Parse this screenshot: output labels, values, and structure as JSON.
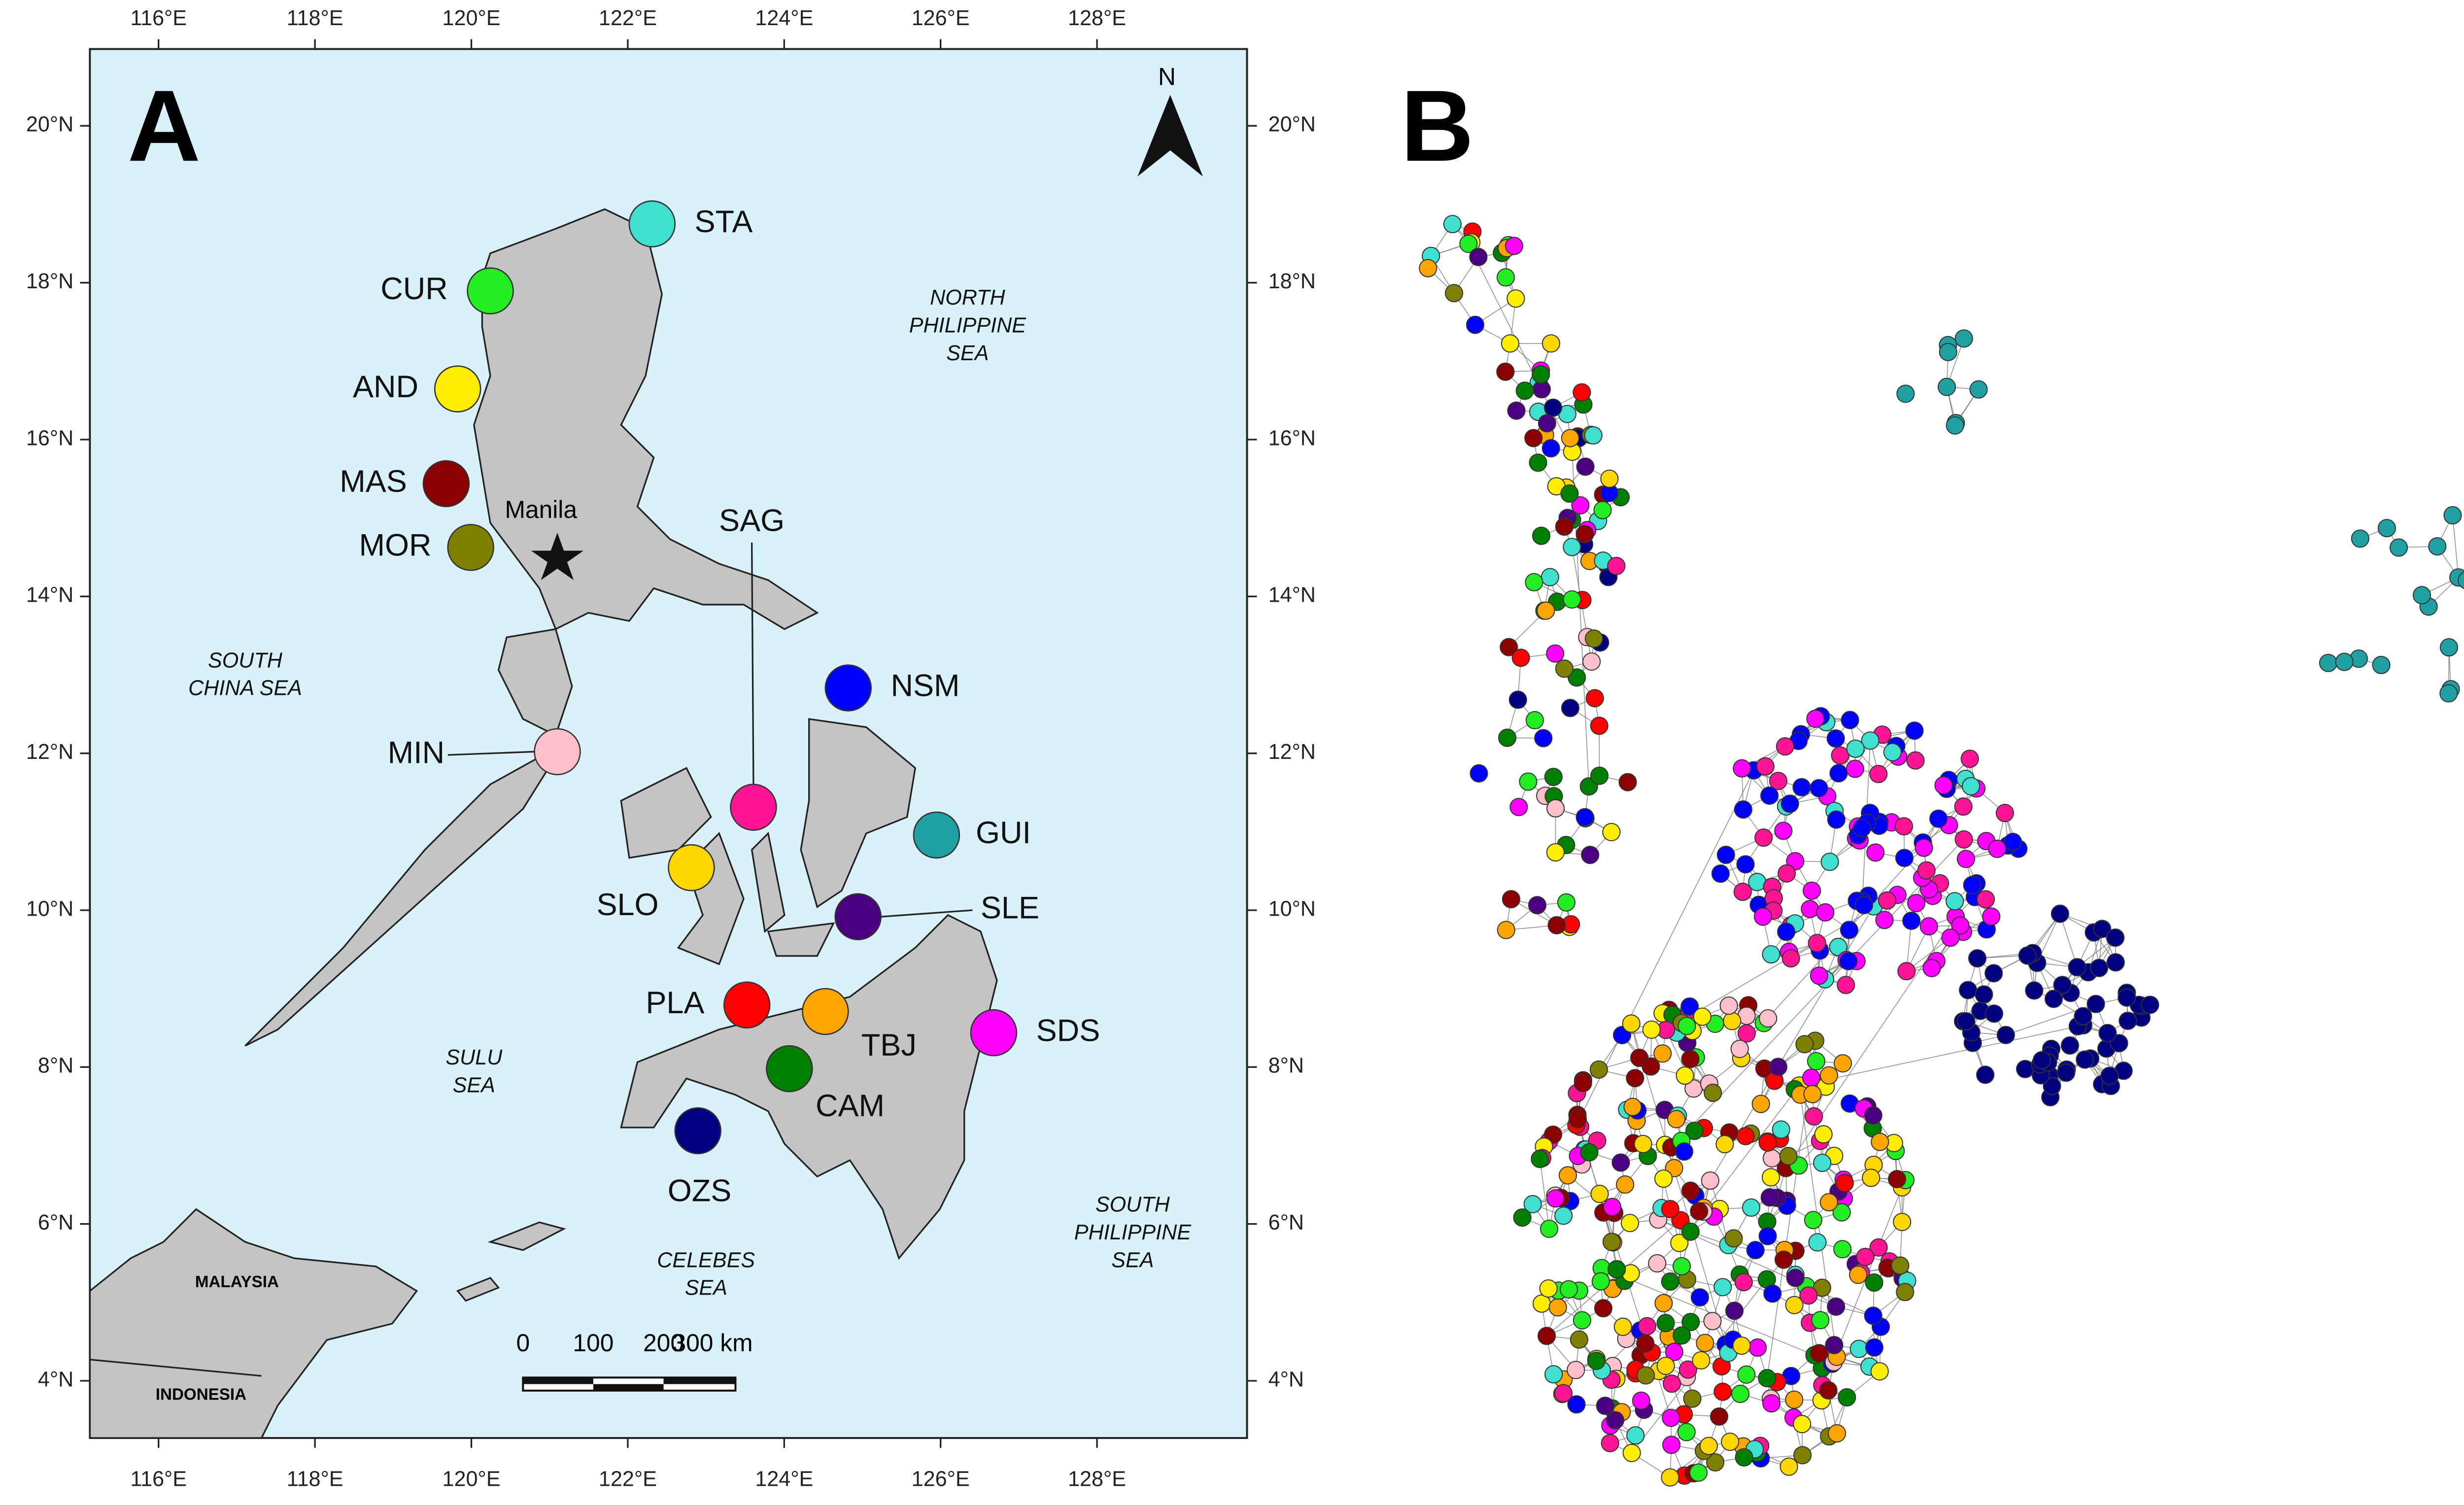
{
  "panel_labels": [
    "A",
    "B"
  ],
  "map": {
    "lon_ticks": [
      "116°E",
      "118°E",
      "120°E",
      "122°E",
      "124°E",
      "126°E",
      "128°E"
    ],
    "lat_ticks": [
      "20°N",
      "18°N",
      "16°N",
      "14°N",
      "12°N",
      "10°N",
      "8°N",
      "6°N",
      "4°N"
    ],
    "north": "N",
    "city": "Manila",
    "seas": [
      [
        "SOUTH",
        "CHINA SEA"
      ],
      [
        "NORTH",
        "PHILIPPINE",
        "SEA"
      ],
      [
        "SULU",
        "SEA"
      ],
      [
        "CELEBES",
        "SEA"
      ],
      [
        "SOUTH",
        "PHILIPPINE",
        "SEA"
      ]
    ],
    "countries": [
      "MALAYSIA",
      "INDONESIA"
    ],
    "scale_bar": [
      "0",
      "100",
      "200",
      "300 km"
    ],
    "sites": [
      {
        "name": "STA",
        "color": "#40e0d0"
      },
      {
        "name": "CUR",
        "color": "#22ee22"
      },
      {
        "name": "AND",
        "color": "#ffee00"
      },
      {
        "name": "MAS",
        "color": "#8b0000"
      },
      {
        "name": "MOR",
        "color": "#808000"
      },
      {
        "name": "MIN",
        "color": "#ffc0cb"
      },
      {
        "name": "SAG",
        "color": "#ff1493"
      },
      {
        "name": "NSM",
        "color": "#0000ff"
      },
      {
        "name": "GUI",
        "color": "#20a0a0"
      },
      {
        "name": "SLO",
        "color": "#ffd700"
      },
      {
        "name": "SLE",
        "color": "#4b0082"
      },
      {
        "name": "PLA",
        "color": "#ff0000"
      },
      {
        "name": "TBJ",
        "color": "#ffa500"
      },
      {
        "name": "CAM",
        "color": "#008000"
      },
      {
        "name": "SDS",
        "color": "#ff00ff"
      },
      {
        "name": "OZS",
        "color": "#000080"
      }
    ]
  }
}
